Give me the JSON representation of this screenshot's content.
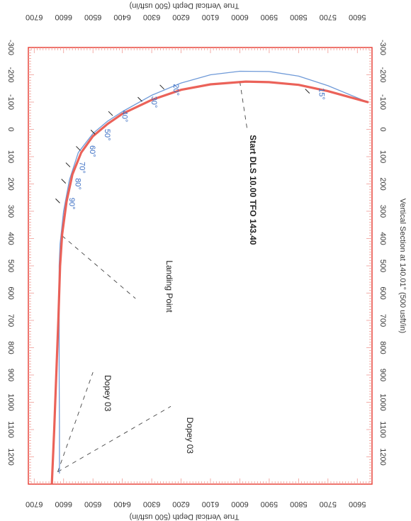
{
  "chart_data": {
    "type": "line",
    "orientation": "rotated-90-clockwise",
    "top_axis_title": "True Vertical Depth (500 usft/in)",
    "bottom_axis_title": "True Vertical Depth (500 usft/in)",
    "right_axis_title": "Vertical Section at 140.01° (500 usft/in)",
    "left_axis_title": "",
    "tvd_range": [
      5550,
      6720
    ],
    "vs_range": [
      -300,
      1300
    ],
    "tvd_ticks": [
      5600,
      5700,
      5800,
      5900,
      6000,
      6100,
      6200,
      6300,
      6400,
      6500,
      6600,
      6700
    ],
    "vs_ticks": [
      -300,
      -200,
      -100,
      0,
      100,
      200,
      300,
      400,
      500,
      600,
      700,
      800,
      900,
      1000,
      1100,
      1200
    ],
    "grid": false,
    "colors": {
      "plan": "#ea5a50",
      "actual": "#6f9ad8",
      "frame": "#e8453c",
      "ticks": "#f09a93",
      "text": "#3a3a3a"
    },
    "series": [
      {
        "name": "Dopey 03",
        "color": "#ea5a50",
        "points": [
          [
            5565,
            -100
          ],
          [
            5700,
            -140
          ],
          [
            5800,
            -163
          ],
          [
            5900,
            -173
          ],
          [
            5980,
            -175
          ],
          [
            6100,
            -165
          ],
          [
            6200,
            -145
          ],
          [
            6300,
            -108
          ],
          [
            6400,
            -57
          ],
          [
            6450,
            -20
          ],
          [
            6500,
            25
          ],
          [
            6540,
            85
          ],
          [
            6570,
            165
          ],
          [
            6590,
            265
          ],
          [
            6605,
            385
          ],
          [
            6612,
            500
          ],
          [
            6618,
            700
          ],
          [
            6625,
            900
          ],
          [
            6632,
            1100
          ],
          [
            6640,
            1297
          ]
        ]
      },
      {
        "name": "Dopey 03",
        "color": "#6f9ad8",
        "points": [
          [
            5565,
            -100
          ],
          [
            5700,
            -160
          ],
          [
            5800,
            -195
          ],
          [
            5900,
            -212
          ],
          [
            6000,
            -213
          ],
          [
            6100,
            -200
          ],
          [
            6200,
            -170
          ],
          [
            6300,
            -125
          ],
          [
            6400,
            -65
          ],
          [
            6450,
            -30
          ],
          [
            6500,
            15
          ],
          [
            6550,
            85
          ],
          [
            6580,
            185
          ],
          [
            6600,
            300
          ],
          [
            6612,
            420
          ],
          [
            6615,
            500
          ],
          [
            6615,
            900
          ],
          [
            6614,
            1100
          ],
          [
            6614,
            1260
          ]
        ]
      }
    ],
    "inclination_labels": [
      {
        "text": "15°",
        "tvd": 5730,
        "vs": -130,
        "color": "#3c6fc4"
      },
      {
        "text": "20°",
        "tvd": 6225,
        "vs": -145,
        "color": "#3c6fc4"
      },
      {
        "text": "30°",
        "tvd": 6300,
        "vs": -100,
        "color": "#3c6fc4"
      },
      {
        "text": "40°",
        "tvd": 6400,
        "vs": -48,
        "color": "#3c6fc4"
      },
      {
        "text": "50°",
        "tvd": 6460,
        "vs": 20,
        "color": "#3c6fc4"
      },
      {
        "text": "60°",
        "tvd": 6510,
        "vs": 80,
        "color": "#3c6fc4"
      },
      {
        "text": "70°",
        "tvd": 6545,
        "vs": 140,
        "color": "#3c6fc4"
      },
      {
        "text": "80°",
        "tvd": 6560,
        "vs": 200,
        "color": "#3c6fc4"
      },
      {
        "text": "90°",
        "tvd": 6580,
        "vs": 272,
        "color": "#3c6fc4"
      }
    ],
    "annotations": [
      {
        "text": "Start DLS 10.00 TFO 143.40",
        "bold": true,
        "tvd": 5965,
        "vs": 20,
        "leader": [
          [
            6000,
            -175
          ],
          [
            5975,
            0
          ]
        ]
      },
      {
        "text": "Landing Point",
        "bold": false,
        "tvd": 6250,
        "vs": 480,
        "leader": [
          [
            6605,
            390
          ],
          [
            6355,
            620
          ]
        ]
      },
      {
        "text": "Dopey 03",
        "bold": false,
        "tvd": 6460,
        "vs": 900,
        "color": "#3c6fc4",
        "leader": [
          [
            6620,
            1255
          ],
          [
            6500,
            890
          ]
        ]
      },
      {
        "text": "Dopey 03",
        "bold": false,
        "tvd": 6180,
        "vs": 1055,
        "color": "#e8453c",
        "leader": [
          [
            6620,
            1255
          ],
          [
            6235,
            1015
          ]
        ]
      }
    ]
  }
}
